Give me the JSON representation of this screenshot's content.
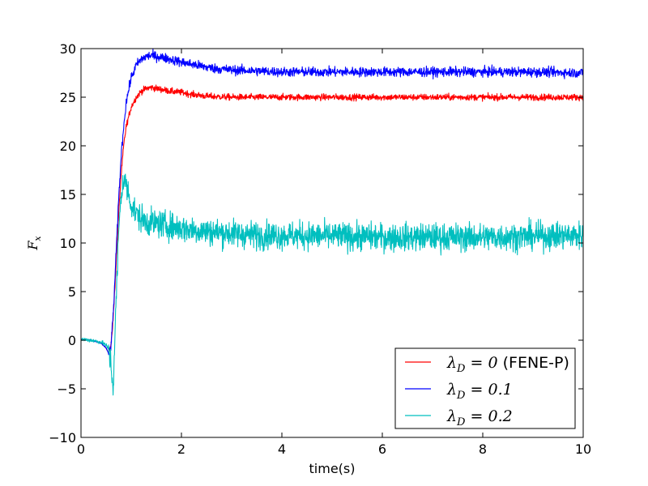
{
  "chart_data": {
    "type": "line",
    "title": "",
    "xlabel": "time(s)",
    "ylabel": {
      "symbol": "F",
      "sub": "x"
    },
    "xlim": [
      0,
      10
    ],
    "ylim": [
      -10,
      30
    ],
    "xticks": [
      0,
      2,
      4,
      6,
      8,
      10
    ],
    "yticks": [
      -10,
      -5,
      0,
      5,
      10,
      15,
      20,
      25,
      30
    ],
    "xtick_labels": [
      "0",
      "2",
      "4",
      "6",
      "8",
      "10"
    ],
    "ytick_labels": [
      "−10",
      "−5",
      "0",
      "5",
      "10",
      "15",
      "20",
      "25",
      "30"
    ],
    "grid": false,
    "legend_position": "lower-right",
    "series": [
      {
        "name": "λ_D = 0 (FENE-P)",
        "label": {
          "symbol": "λ",
          "sub": "D",
          "eq": " = 0",
          "suffix": " (FENE-P)"
        },
        "color": "#ff0000",
        "noise": 0.3,
        "x": [
          0,
          0.2,
          0.4,
          0.5,
          0.55,
          0.6,
          0.65,
          0.7,
          0.75,
          0.8,
          0.85,
          0.9,
          1.0,
          1.1,
          1.2,
          1.3,
          1.4,
          1.6,
          1.8,
          2.0,
          2.2,
          2.5,
          3.0,
          3.5,
          4.0,
          5.0,
          6.0,
          7.0,
          8.0,
          9.0,
          10.0
        ],
        "y": [
          0.1,
          0.0,
          -0.3,
          -0.8,
          -1.3,
          -0.5,
          3.0,
          8.0,
          13.0,
          17.0,
          20.0,
          22.0,
          24.0,
          25.0,
          25.6,
          25.9,
          26.0,
          25.8,
          25.6,
          25.5,
          25.3,
          25.1,
          25.0,
          25.0,
          25.0,
          25.0,
          25.0,
          25.0,
          25.0,
          25.0,
          25.0
        ]
      },
      {
        "name": "λ_D = 0.1",
        "label": {
          "symbol": "λ",
          "sub": "D",
          "eq": " = 0.1",
          "suffix": ""
        },
        "color": "#0000ff",
        "noise": 0.45,
        "x": [
          0,
          0.2,
          0.4,
          0.5,
          0.55,
          0.6,
          0.65,
          0.7,
          0.75,
          0.8,
          0.85,
          0.9,
          1.0,
          1.1,
          1.2,
          1.3,
          1.4,
          1.5,
          1.7,
          2.0,
          2.3,
          2.6,
          3.0,
          3.5,
          4.0,
          5.0,
          6.0,
          7.0,
          8.0,
          9.0,
          10.0
        ],
        "y": [
          0.1,
          0.0,
          -0.3,
          -0.8,
          -1.4,
          -0.5,
          3.5,
          9.0,
          14.5,
          19.0,
          22.0,
          24.5,
          27.0,
          28.3,
          28.9,
          29.2,
          29.3,
          29.2,
          29.0,
          28.6,
          28.3,
          28.0,
          27.8,
          27.7,
          27.6,
          27.6,
          27.6,
          27.6,
          27.6,
          27.6,
          27.5
        ]
      },
      {
        "name": "λ_D = 0.2",
        "label": {
          "symbol": "λ",
          "sub": "D",
          "eq": " = 0.2",
          "suffix": ""
        },
        "color": "#00bfbf",
        "noise": 1.3,
        "x": [
          0,
          0.2,
          0.4,
          0.5,
          0.55,
          0.6,
          0.62,
          0.64,
          0.66,
          0.7,
          0.75,
          0.8,
          0.85,
          0.9,
          0.95,
          1.0,
          1.1,
          1.2,
          1.3,
          1.5,
          1.8,
          2.0,
          2.5,
          3.0,
          3.5,
          4.0,
          5.0,
          6.0,
          7.0,
          8.0,
          9.0,
          10.0
        ],
        "y": [
          0.1,
          0.0,
          -0.2,
          -0.5,
          -1.0,
          -2.5,
          -4.0,
          -5.0,
          -2.0,
          4.0,
          11.0,
          15.0,
          16.5,
          16.0,
          15.0,
          14.0,
          13.0,
          12.5,
          12.2,
          12.0,
          11.7,
          11.5,
          11.2,
          11.0,
          10.8,
          10.8,
          10.7,
          10.6,
          10.6,
          10.6,
          10.7,
          10.8
        ]
      }
    ]
  }
}
